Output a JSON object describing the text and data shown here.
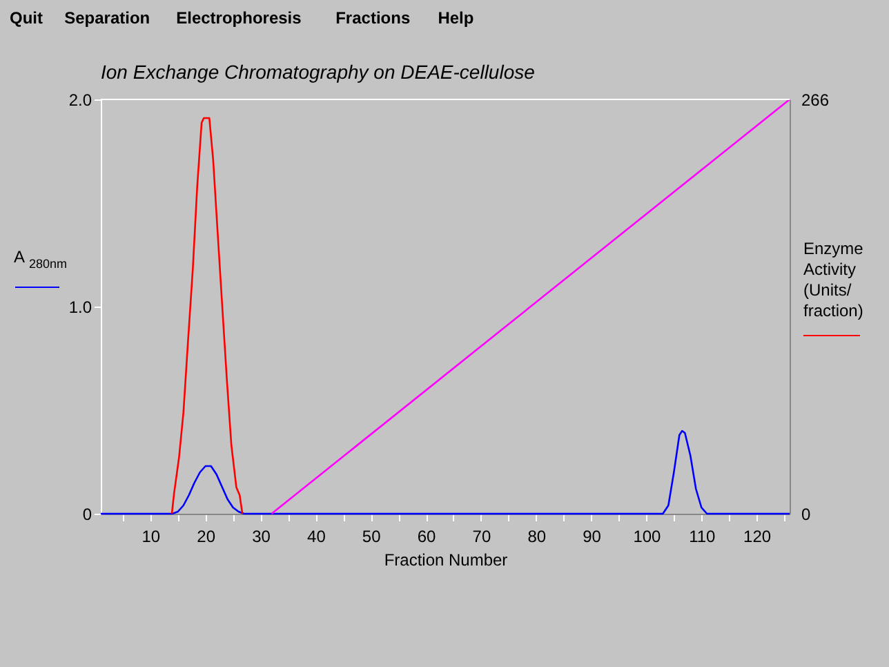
{
  "chart_data": {
    "type": "line",
    "title": "Ion Exchange Chromatography on DEAE-cellulose",
    "xlabel": "Fraction Number",
    "ylabel": "A$_{280nm}$",
    "y2label": "Enzyme Activity (Units/ fraction)",
    "annotations": [
      "Quit",
      "Separation",
      "Electrophoresis",
      "Fractions",
      "Help"
    ],
    "xlim": [
      1,
      126
    ],
    "xticks": [
      {
        "value": 5,
        "label": null
      },
      10,
      {
        "value": 15,
        "label": null
      },
      20,
      {
        "value": 25,
        "label": null
      },
      30,
      {
        "value": 35,
        "label": null
      },
      40,
      {
        "value": 45,
        "label": null
      },
      50,
      {
        "value": 55,
        "label": null
      },
      60,
      {
        "value": 65,
        "label": null
      },
      70,
      {
        "value": 75,
        "label": null
      },
      80,
      {
        "value": 85,
        "label": null
      },
      90,
      {
        "value": 95,
        "label": null
      },
      100,
      {
        "value": 105,
        "label": null
      },
      110,
      {
        "value": 115,
        "label": null
      },
      120,
      {
        "value": 125,
        "label": null
      }
    ],
    "ylim": [
      0,
      2.0
    ],
    "yticks": [
      0,
      {
        "value": 1,
        "label": "1.0"
      },
      {
        "value": 2,
        "label": "2.0"
      }
    ],
    "y2lim": [
      0,
      266
    ],
    "y2ticks": [
      0,
      266
    ],
    "grid": false,
    "legend": false,
    "marker": "none",
    "line_style": "solid",
    "series": [
      {
        "color": "#0000ff",
        "x": [
          1,
          14,
          15,
          16,
          17,
          18,
          19,
          20,
          21,
          22,
          23,
          24,
          25,
          26,
          27,
          103,
          104,
          105,
          106,
          106.5,
          107,
          108,
          109,
          110,
          111,
          126
        ],
        "values": [
          0,
          0,
          0.01,
          0.04,
          0.09,
          0.15,
          0.2,
          0.23,
          0.23,
          0.19,
          0.13,
          0.07,
          0.03,
          0.01,
          0,
          0,
          0.04,
          0.2,
          0.38,
          0.4,
          0.39,
          0.28,
          0.12,
          0.03,
          0,
          0
        ]
      },
      {
        "color": "#ff00ff",
        "x": [
          32,
          126
        ],
        "values": [
          0,
          2.0
        ]
      },
      {
        "color": "#ff0000",
        "axis": "y2",
        "x": [
          13.9,
          14.3,
          15.2,
          16.0,
          16.8,
          17.7,
          18.5,
          19.3,
          19.7,
          20.7,
          21.4,
          22.2,
          23.1,
          23.9,
          24.7,
          25.6,
          26.2,
          26.7
        ],
        "values": [
          0,
          13,
          36,
          65,
          109,
          157,
          210,
          251,
          254,
          254,
          227,
          181,
          130,
          85,
          44,
          17,
          12,
          0
        ]
      }
    ]
  }
}
